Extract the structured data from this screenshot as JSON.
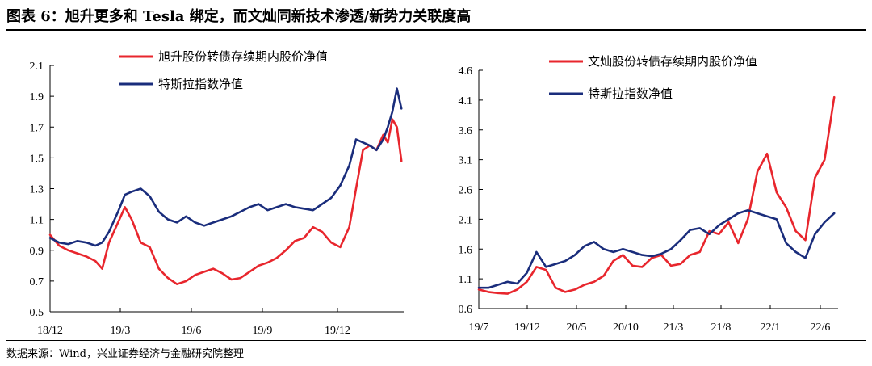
{
  "header": {
    "title": "图表 6：旭升更多和 Tesla 绑定，而文灿同新技术渗透/新势力关联度高"
  },
  "footer": {
    "source": "数据来源：Wind，兴业证券经济与金融研究院整理"
  },
  "colors": {
    "red": "#e8262d",
    "navy": "#1a2d7c",
    "axis": "#000000"
  },
  "chart_data": [
    {
      "type": "line",
      "title": "",
      "xlabel": "",
      "ylabel": "",
      "x_ticks": [
        "18/12",
        "19/3",
        "19/6",
        "19/9",
        "19/12"
      ],
      "x_range": [
        0,
        15.6
      ],
      "y_ticks": [
        "0.5",
        "0.7",
        "0.9",
        "1.1",
        "1.3",
        "1.5",
        "1.7",
        "1.9",
        "2.1"
      ],
      "ylim": [
        0.5,
        2.1
      ],
      "grid": false,
      "legend_position": "top-center",
      "series": [
        {
          "name": "旭升股份转债存续期内股价净值",
          "color": "#e8262d",
          "x": [
            0,
            0.4,
            0.8,
            1.2,
            1.6,
            2.0,
            2.3,
            2.6,
            3.0,
            3.3,
            3.6,
            4.0,
            4.4,
            4.8,
            5.2,
            5.6,
            6.0,
            6.4,
            6.8,
            7.2,
            7.6,
            8.0,
            8.4,
            8.8,
            9.2,
            9.6,
            10.0,
            10.4,
            10.8,
            11.2,
            11.6,
            12.0,
            12.4,
            12.8,
            13.2,
            13.5,
            13.8,
            14.1,
            14.4,
            14.7,
            14.9,
            15.1,
            15.3,
            15.5
          ],
          "values": [
            1.0,
            0.93,
            0.9,
            0.88,
            0.86,
            0.83,
            0.78,
            0.95,
            1.08,
            1.18,
            1.1,
            0.95,
            0.92,
            0.78,
            0.72,
            0.68,
            0.7,
            0.74,
            0.76,
            0.78,
            0.75,
            0.71,
            0.72,
            0.76,
            0.8,
            0.82,
            0.85,
            0.9,
            0.96,
            0.98,
            1.05,
            1.02,
            0.95,
            0.92,
            1.05,
            1.3,
            1.55,
            1.58,
            1.55,
            1.65,
            1.6,
            1.75,
            1.7,
            1.48
          ]
        },
        {
          "name": "特斯拉指数净值",
          "color": "#1a2d7c",
          "x": [
            0,
            0.4,
            0.8,
            1.2,
            1.6,
            2.0,
            2.3,
            2.6,
            3.0,
            3.3,
            3.6,
            4.0,
            4.4,
            4.8,
            5.2,
            5.6,
            6.0,
            6.4,
            6.8,
            7.2,
            7.6,
            8.0,
            8.4,
            8.8,
            9.2,
            9.6,
            10.0,
            10.4,
            10.8,
            11.2,
            11.6,
            12.0,
            12.4,
            12.8,
            13.2,
            13.5,
            13.8,
            14.1,
            14.4,
            14.7,
            14.9,
            15.1,
            15.3,
            15.5
          ],
          "values": [
            0.98,
            0.95,
            0.94,
            0.96,
            0.95,
            0.93,
            0.95,
            1.02,
            1.15,
            1.26,
            1.28,
            1.3,
            1.25,
            1.15,
            1.1,
            1.08,
            1.12,
            1.08,
            1.06,
            1.08,
            1.1,
            1.12,
            1.15,
            1.18,
            1.2,
            1.16,
            1.18,
            1.2,
            1.18,
            1.17,
            1.16,
            1.2,
            1.24,
            1.32,
            1.45,
            1.62,
            1.6,
            1.58,
            1.55,
            1.62,
            1.7,
            1.8,
            1.95,
            1.82
          ]
        }
      ]
    },
    {
      "type": "line",
      "title": "",
      "xlabel": "",
      "ylabel": "",
      "x_ticks": [
        "19/7",
        "19/12",
        "20/5",
        "20/10",
        "21/3",
        "21/8",
        "22/1",
        "22/6"
      ],
      "x_range": [
        0,
        37.4
      ],
      "y_ticks": [
        "0.6",
        "1.1",
        "1.6",
        "2.1",
        "2.6",
        "3.1",
        "3.6",
        "4.1",
        "4.6"
      ],
      "ylim": [
        0.6,
        4.6
      ],
      "grid": false,
      "legend_position": "top-center",
      "series": [
        {
          "name": "文灿股份转债存续期内股价净值",
          "color": "#e8262d",
          "x": [
            0,
            1,
            2,
            3,
            4,
            5,
            6,
            7,
            8,
            9,
            10,
            11,
            12,
            13,
            14,
            15,
            16,
            17,
            18,
            19,
            20,
            21,
            22,
            23,
            24,
            25,
            26,
            27,
            28,
            29,
            30,
            31,
            32,
            33,
            34,
            35,
            36,
            37
          ],
          "values": [
            0.92,
            0.88,
            0.86,
            0.85,
            0.92,
            1.05,
            1.3,
            1.25,
            0.95,
            0.88,
            0.92,
            1.0,
            1.05,
            1.15,
            1.4,
            1.5,
            1.32,
            1.3,
            1.45,
            1.5,
            1.32,
            1.35,
            1.5,
            1.55,
            1.9,
            1.85,
            2.05,
            1.7,
            2.1,
            2.9,
            3.2,
            2.55,
            2.3,
            1.9,
            1.75,
            2.8,
            3.1,
            4.15
          ]
        },
        {
          "name": "特斯拉指数净值",
          "color": "#1a2d7c",
          "x": [
            0,
            1,
            2,
            3,
            4,
            5,
            6,
            7,
            8,
            9,
            10,
            11,
            12,
            13,
            14,
            15,
            16,
            17,
            18,
            19,
            20,
            21,
            22,
            23,
            24,
            25,
            26,
            27,
            28,
            29,
            30,
            31,
            32,
            33,
            34,
            35,
            36,
            37
          ],
          "values": [
            0.95,
            0.95,
            1.0,
            1.05,
            1.02,
            1.2,
            1.55,
            1.3,
            1.35,
            1.4,
            1.5,
            1.65,
            1.72,
            1.6,
            1.55,
            1.6,
            1.55,
            1.5,
            1.48,
            1.52,
            1.6,
            1.75,
            1.92,
            1.95,
            1.85,
            2.0,
            2.1,
            2.2,
            2.25,
            2.2,
            2.15,
            2.1,
            1.7,
            1.55,
            1.45,
            1.85,
            2.05,
            2.2
          ]
        }
      ]
    }
  ]
}
